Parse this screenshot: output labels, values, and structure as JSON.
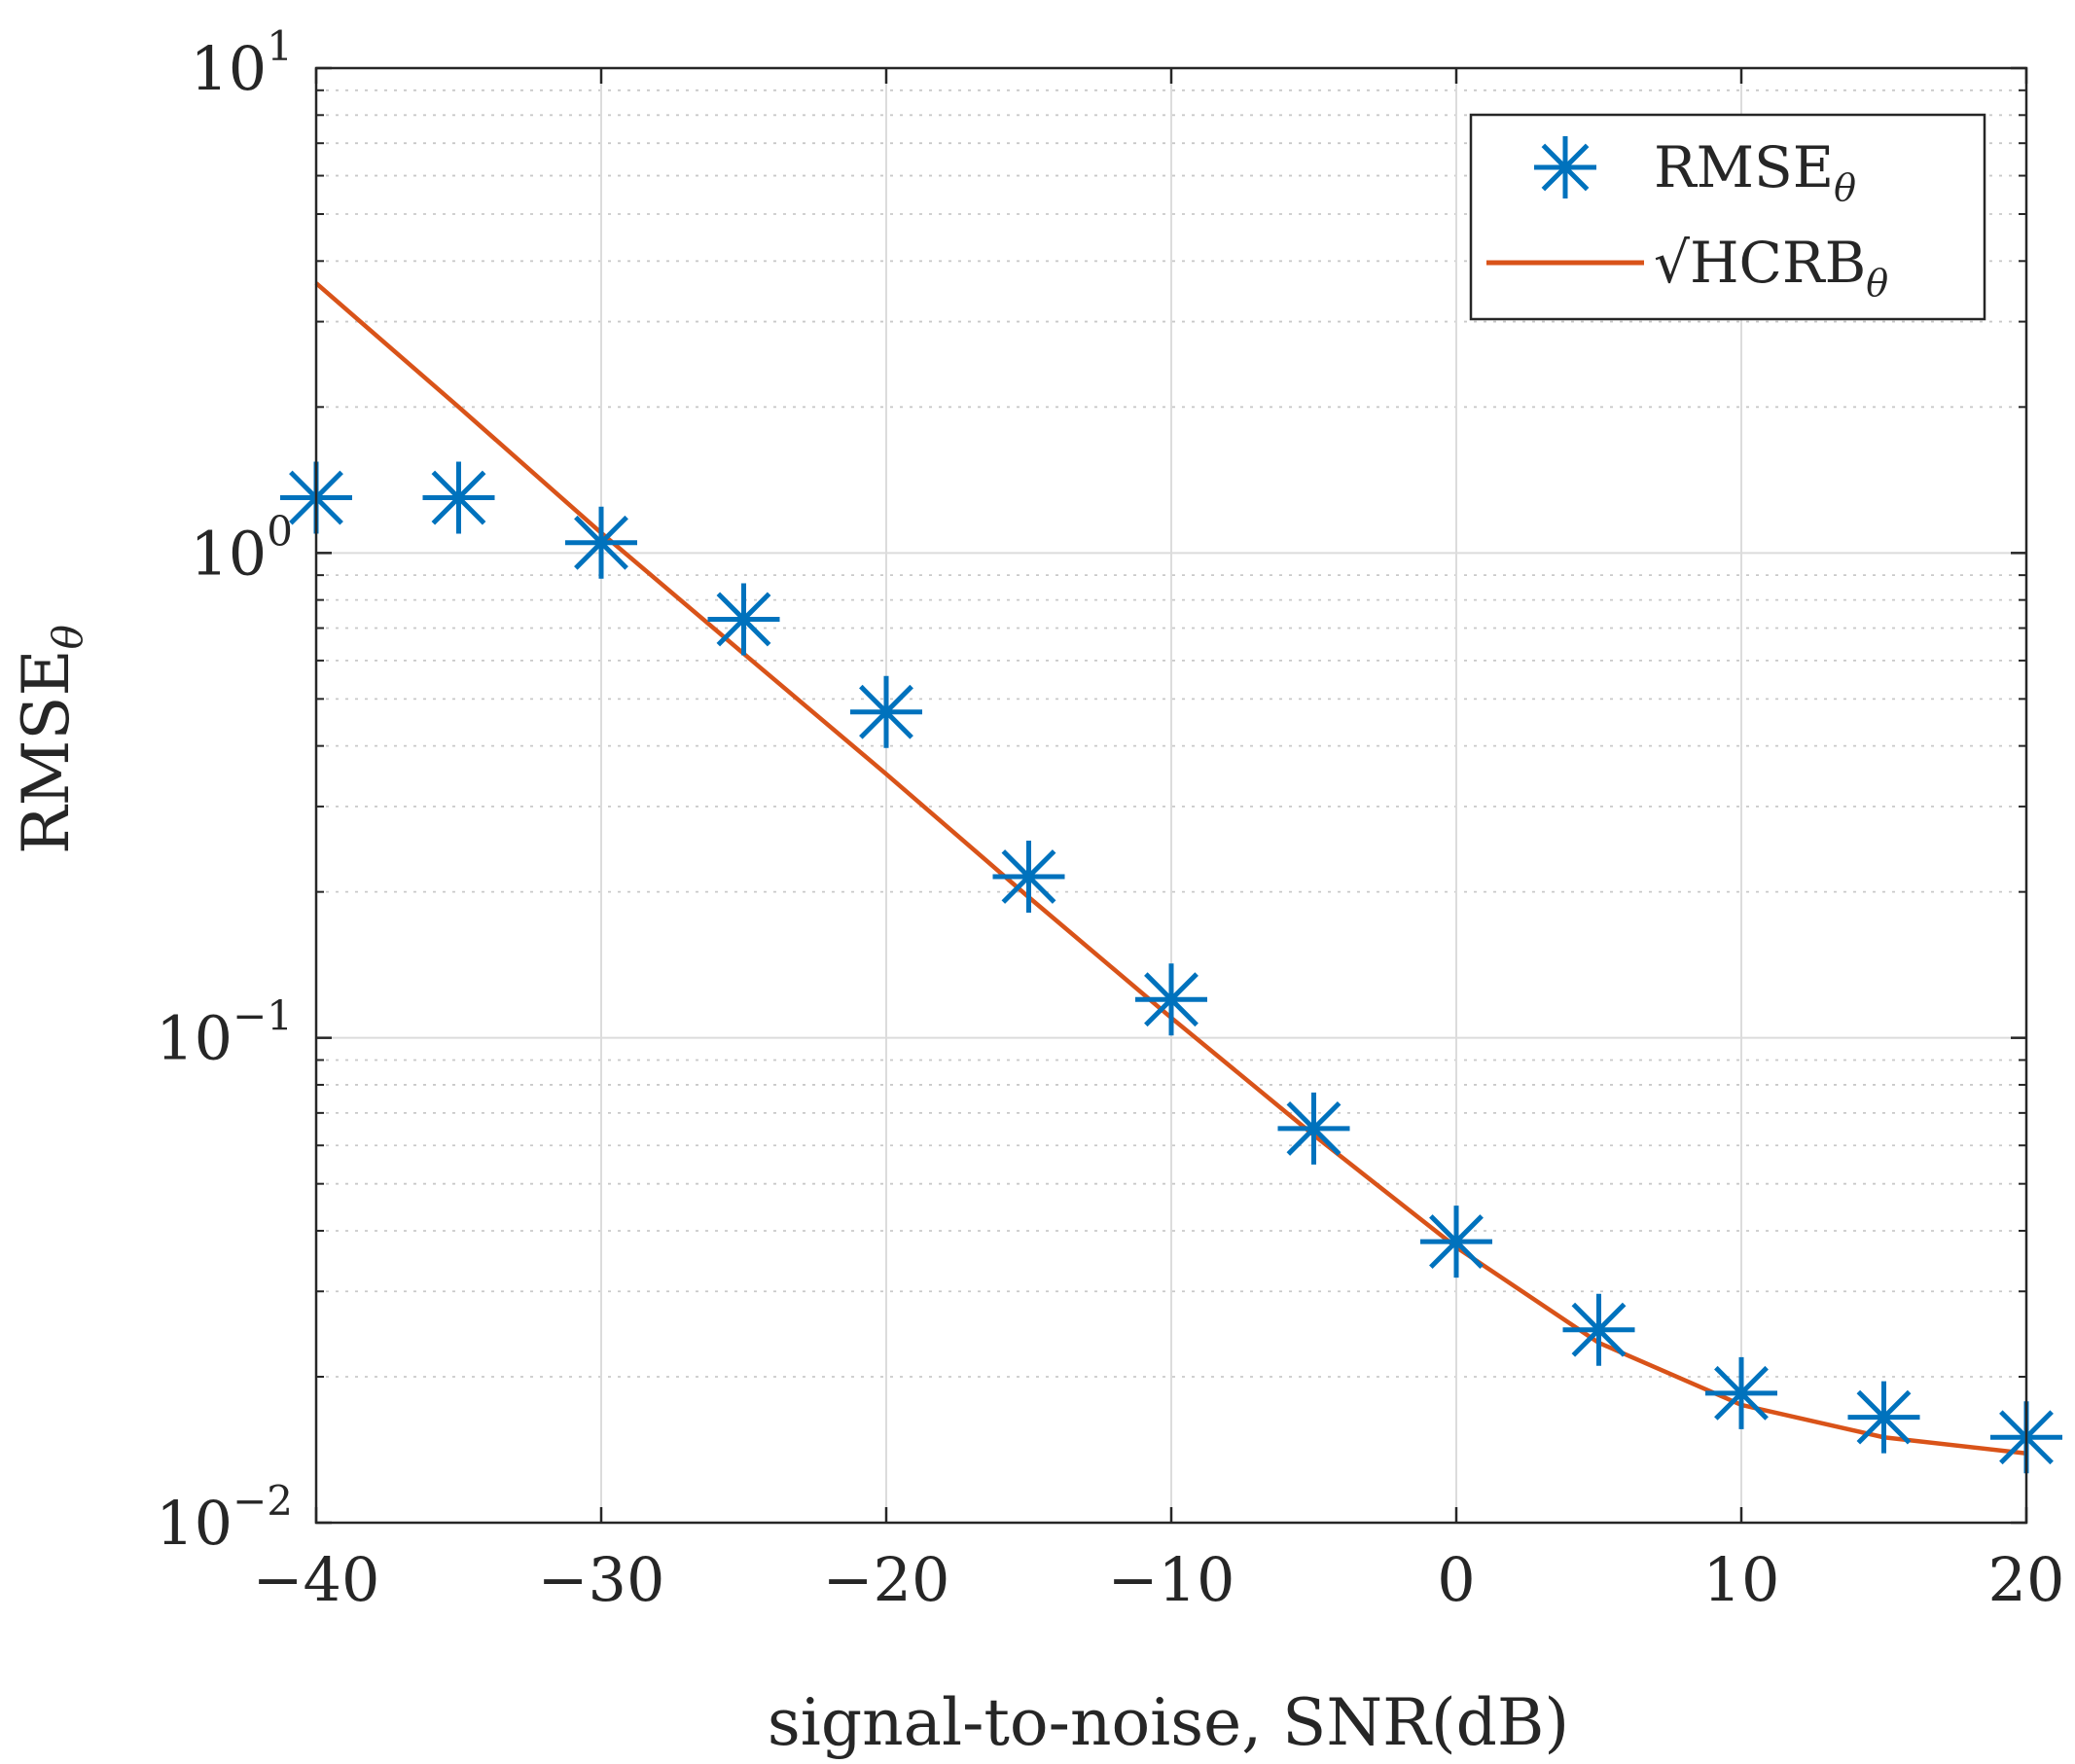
{
  "chart_data": {
    "type": "line",
    "title": "",
    "xlabel": "signal-to-noise, SNR(dB)",
    "ylabel": {
      "main": "RMSE",
      "sub": "θ"
    },
    "xscale": "linear",
    "yscale": "log",
    "xlim": [
      -40,
      20
    ],
    "ylim": [
      0.01,
      10
    ],
    "grid": true,
    "minor_grid": true,
    "x_ticks": [
      {
        "value": -40,
        "label": "−40"
      },
      {
        "value": -30,
        "label": "−30"
      },
      {
        "value": -20,
        "label": "−20"
      },
      {
        "value": -10,
        "label": "−10"
      },
      {
        "value": 0,
        "label": "0"
      },
      {
        "value": 10,
        "label": "10"
      },
      {
        "value": 20,
        "label": "20"
      }
    ],
    "y_ticks": [
      {
        "value": 10,
        "base": "10",
        "exp": "1"
      },
      {
        "value": 1,
        "base": "10",
        "exp": "0"
      },
      {
        "value": 0.1,
        "base": "10",
        "exp": "−1"
      },
      {
        "value": 0.01,
        "base": "10",
        "exp": "−2"
      }
    ],
    "legend_position": "top-right",
    "series": [
      {
        "name": "RMSE",
        "name_sub": "θ",
        "style": "markers",
        "marker": "asterisk",
        "color": "#0072BD",
        "x": [
          -40,
          -35,
          -30,
          -25,
          -20,
          -15,
          -10,
          -5,
          0,
          5,
          10,
          15,
          20
        ],
        "y": [
          1.3,
          1.3,
          1.05,
          0.73,
          0.47,
          0.215,
          0.12,
          0.065,
          0.038,
          0.025,
          0.0185,
          0.0165,
          0.015
        ]
      },
      {
        "name": "HCRB",
        "name_sub": "θ",
        "name_prefix": "√",
        "style": "line",
        "color": "#D95319",
        "x": [
          -40,
          -35,
          -30,
          -25,
          -20,
          -15,
          -10,
          -5,
          0,
          5,
          10,
          15,
          20
        ],
        "y": [
          3.6,
          2.0,
          1.1,
          0.62,
          0.35,
          0.195,
          0.11,
          0.063,
          0.037,
          0.0235,
          0.0175,
          0.015,
          0.0139
        ]
      }
    ]
  }
}
